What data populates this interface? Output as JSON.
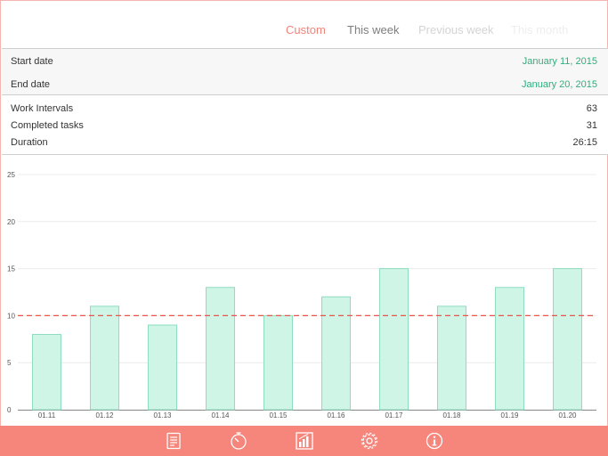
{
  "tabs": [
    {
      "label": "Custom",
      "state": "active"
    },
    {
      "label": "This week",
      "state": "normal"
    },
    {
      "label": "Previous week",
      "state": "faded"
    },
    {
      "label": "This month",
      "state": "faded2"
    }
  ],
  "range": {
    "start_label": "Start date",
    "start_value": "January 11, 2015",
    "end_label": "End date",
    "end_value": "January 20, 2015"
  },
  "stats": {
    "intervals_label": "Work Intervals",
    "intervals_value": "63",
    "tasks_label": "Completed tasks",
    "tasks_value": "31",
    "duration_label": "Duration",
    "duration_value": "26:15"
  },
  "chart_data": {
    "type": "bar",
    "categories": [
      "01.11",
      "01.12",
      "01.13",
      "01.14",
      "01.15",
      "01.16",
      "01.17",
      "01.18",
      "01.19",
      "01.20"
    ],
    "values": [
      8,
      11,
      9,
      13,
      10,
      12,
      15,
      11,
      13,
      15
    ],
    "ylim": [
      0,
      25
    ],
    "yticks": [
      "0",
      "5",
      "10",
      "15",
      "20",
      "25"
    ],
    "reference_line": 10,
    "grid": true,
    "bar_fill": "#cff5e7",
    "bar_stroke": "#8fdcbf",
    "reference_color": "#e8554c"
  },
  "nav": {
    "icons": [
      "list-icon",
      "timer-icon",
      "stats-icon",
      "settings-icon",
      "info-icon"
    ],
    "color": "#f6857b"
  }
}
